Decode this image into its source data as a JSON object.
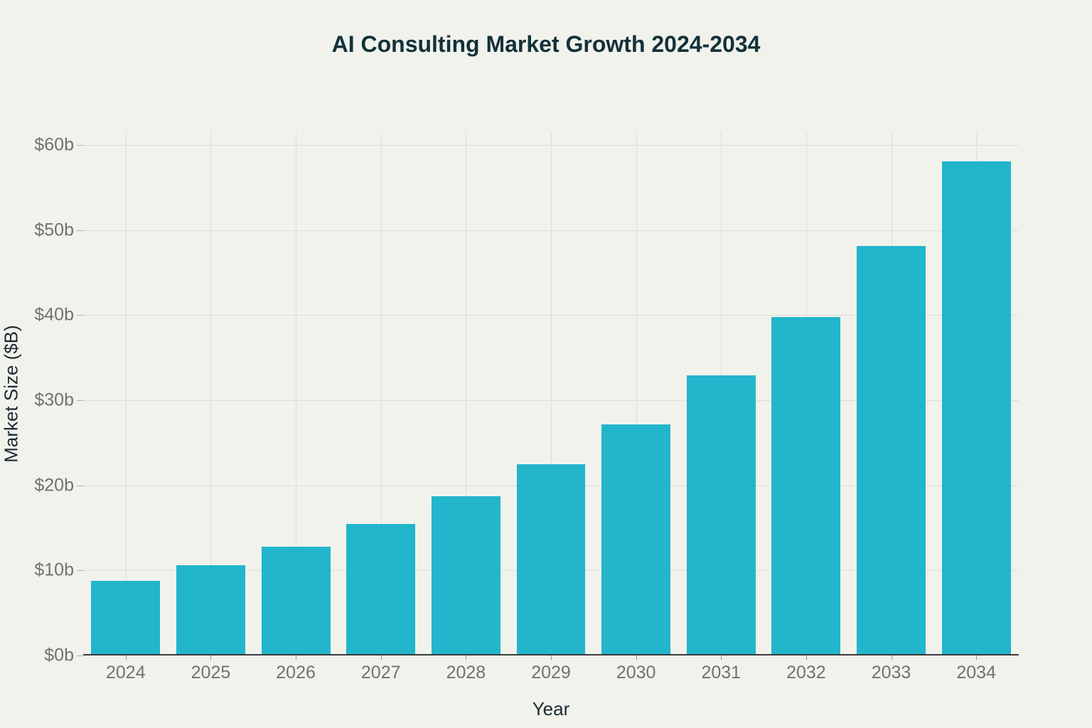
{
  "chart_data": {
    "type": "bar",
    "title": "AI Consulting Market Growth 2024-2034",
    "xlabel": "Year",
    "ylabel": "Market Size ($B)",
    "categories": [
      "2024",
      "2025",
      "2026",
      "2027",
      "2028",
      "2029",
      "2030",
      "2031",
      "2032",
      "2033",
      "2034"
    ],
    "values": [
      8.8,
      10.6,
      12.8,
      15.5,
      18.7,
      22.5,
      27.2,
      32.9,
      39.8,
      48.1,
      58.1
    ],
    "yticks": {
      "values": [
        0,
        10,
        20,
        30,
        40,
        50,
        60
      ],
      "labels": [
        "$0b",
        "$10b",
        "$20b",
        "$30b",
        "$40b",
        "$50b",
        "$60b"
      ]
    },
    "ylim": [
      0,
      61.5
    ],
    "grid": "on",
    "legend": "none",
    "colors": {
      "bar": "#22b5cc",
      "background": "#f1f2ec",
      "gridline": "#dcded7",
      "axis_line": "#3a3b3b",
      "tick_text": "#6e7370",
      "title_text": "#13313a"
    }
  }
}
